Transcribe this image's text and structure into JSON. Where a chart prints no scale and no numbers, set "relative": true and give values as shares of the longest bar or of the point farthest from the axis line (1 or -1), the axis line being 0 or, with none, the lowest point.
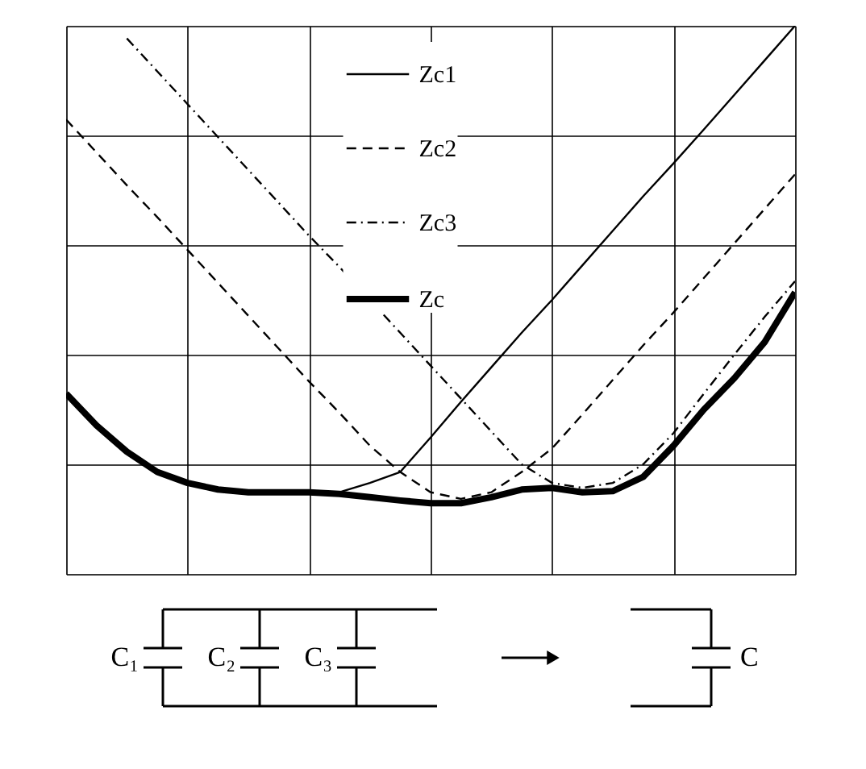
{
  "chart_data": {
    "type": "line",
    "relative": true,
    "grid": true,
    "legend": "top",
    "tick_labels": false,
    "categories": [
      null,
      null,
      null,
      null,
      null,
      null,
      null,
      null,
      null,
      null,
      null,
      null,
      null,
      null,
      null,
      null,
      null,
      null,
      null,
      null,
      null,
      null,
      null,
      null,
      null
    ],
    "series": [
      {
        "name": "Zc1",
        "color": "#000000",
        "line_style": "solid",
        "values": [
          null,
          null,
          null,
          null,
          null,
          null,
          null,
          null,
          null,
          0.149,
          0.166,
          0.186,
          0.249,
          0.314,
          0.377,
          0.44,
          0.5,
          0.563,
          0.626,
          0.689,
          0.749,
          0.811,
          0.874,
          0.937,
          1
        ]
      },
      {
        "name": "Zc2",
        "color": "#000000",
        "line_style": "dashed",
        "values": [
          0.829,
          0.769,
          0.709,
          0.651,
          0.591,
          0.531,
          0.471,
          0.411,
          0.351,
          0.294,
          0.234,
          0.186,
          0.149,
          0.137,
          0.149,
          0.186,
          0.229,
          0.291,
          0.354,
          0.417,
          0.477,
          0.54,
          0.603,
          0.666,
          0.729
        ]
      },
      {
        "name": "Zc3",
        "color": "#000000",
        "line_style": "dotted",
        "values": [
          null,
          null,
          0.977,
          0.917,
          0.857,
          0.797,
          0.737,
          0.677,
          0.617,
          0.56,
          0.5,
          0.44,
          0.38,
          0.32,
          0.26,
          0.2,
          0.166,
          0.157,
          0.166,
          0.2,
          0.257,
          0.329,
          0.4,
          0.469,
          0.534
        ]
      },
      {
        "name": "Zc",
        "color": "#000000",
        "line_style": "solid",
        "values": [
          0.329,
          0.271,
          0.223,
          0.186,
          0.166,
          0.154,
          0.149,
          0.149,
          0.149,
          0.146,
          0.14,
          0.134,
          0.129,
          0.129,
          0.14,
          0.154,
          0.157,
          0.149,
          0.151,
          0.177,
          0.234,
          0.3,
          0.357,
          0.423,
          0.514
        ]
      }
    ],
    "annotations": [
      "C₁",
      "C₂",
      "C₃",
      "C"
    ]
  }
}
